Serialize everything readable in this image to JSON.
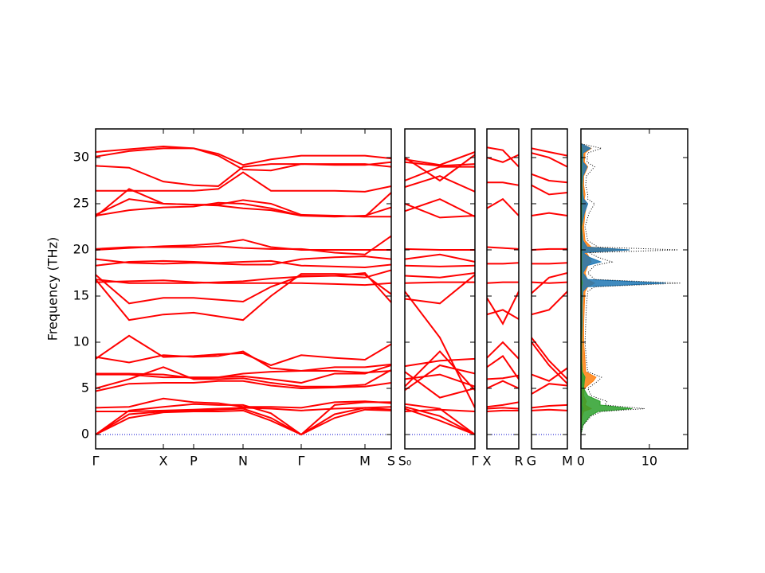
{
  "chart_data": [
    {
      "type": "line",
      "ylabel": "Frequency (THz)",
      "color": "#ff0000",
      "ytick_labels": true,
      "zero_line": "#0000cc",
      "xlim": [
        0,
        3.71
      ],
      "ylim": [
        -1.55,
        33.1
      ],
      "yticks": [
        0,
        5,
        10,
        15,
        20,
        25,
        30
      ],
      "xticks": [
        {
          "value": 0,
          "label": "Γ"
        },
        {
          "value": 0.85,
          "label": "X"
        },
        {
          "value": 1.23,
          "label": "P"
        },
        {
          "value": 1.85,
          "label": "N"
        },
        {
          "value": 2.58,
          "label": "Γ"
        },
        {
          "value": 3.38,
          "label": "M"
        },
        {
          "value": 3.71,
          "label": "S"
        }
      ],
      "x": [
        0,
        0.42,
        0.85,
        1.23,
        1.54,
        1.85,
        2.2,
        2.58,
        3.0,
        3.38,
        3.71
      ],
      "series": [
        {
          "values": [
            0,
            1.8,
            2.4,
            2.5,
            2.5,
            2.6,
            1.5,
            0,
            1.8,
            2.7,
            2.6
          ]
        },
        {
          "values": [
            0,
            2.2,
            2.5,
            2.6,
            2.7,
            2.8,
            1.8,
            0,
            2.2,
            2.9,
            2.7
          ]
        },
        {
          "values": [
            0,
            2.6,
            3.0,
            3.3,
            3.2,
            3.2,
            2.3,
            0,
            3.2,
            3.5,
            3.5
          ]
        },
        {
          "values": [
            2.5,
            2.5,
            2.6,
            2.7,
            2.8,
            2.9,
            2.8,
            2.6,
            2.8,
            2.9,
            3.0
          ]
        },
        {
          "values": [
            2.9,
            3.0,
            3.9,
            3.5,
            3.4,
            3.0,
            3.0,
            2.9,
            3.5,
            3.6,
            3.4
          ]
        },
        {
          "values": [
            4.7,
            5.5,
            5.6,
            5.6,
            5.8,
            5.8,
            5.3,
            5.0,
            5.1,
            5.2,
            5.6
          ]
        },
        {
          "values": [
            5.0,
            6.0,
            7.3,
            6.0,
            6.0,
            6.1,
            5.6,
            5.2,
            5.2,
            5.4,
            7.0
          ]
        },
        {
          "values": [
            6.5,
            6.5,
            6.2,
            6.2,
            6.2,
            6.3,
            6.0,
            5.6,
            6.6,
            6.6,
            7.5
          ]
        },
        {
          "values": [
            6.6,
            6.6,
            6.5,
            6.1,
            6.2,
            6.6,
            6.8,
            6.9,
            6.9,
            6.7,
            6.9
          ]
        },
        {
          "values": [
            8.2,
            10.7,
            8.4,
            8.5,
            8.7,
            8.8,
            7.5,
            8.6,
            8.3,
            8.1,
            9.8
          ]
        },
        {
          "values": [
            8.4,
            7.8,
            8.6,
            8.4,
            8.5,
            9.0,
            7.2,
            6.9,
            7.3,
            7.3,
            7.6
          ]
        },
        {
          "values": [
            16.8,
            12.4,
            13.0,
            13.2,
            12.8,
            12.4,
            15.0,
            17.4,
            17.4,
            17.3,
            15.2
          ]
        },
        {
          "values": [
            17.3,
            14.2,
            14.8,
            14.8,
            14.6,
            14.4,
            16.0,
            17.2,
            17.2,
            17.5,
            14.3
          ]
        },
        {
          "values": [
            16.5,
            16.6,
            16.7,
            16.5,
            16.4,
            16.4,
            16.4,
            16.4,
            16.3,
            16.2,
            16.4
          ]
        },
        {
          "values": [
            16.8,
            16.4,
            16.4,
            16.4,
            16.5,
            16.6,
            16.9,
            17.1,
            17.2,
            17.0,
            17.8
          ]
        },
        {
          "values": [
            18.3,
            18.7,
            18.8,
            18.7,
            18.6,
            18.7,
            18.8,
            18.3,
            18.2,
            18.1,
            18.4
          ]
        },
        {
          "values": [
            19.0,
            18.6,
            18.5,
            18.6,
            18.5,
            18.4,
            18.4,
            19.0,
            19.2,
            19.3,
            19.0
          ]
        },
        {
          "values": [
            20.0,
            20.2,
            20.4,
            20.5,
            20.7,
            21.1,
            20.3,
            20.0,
            20.0,
            20.0,
            20.0
          ]
        },
        {
          "values": [
            20.1,
            20.3,
            20.3,
            20.3,
            20.4,
            20.2,
            20.1,
            20.1,
            19.7,
            19.5,
            21.5
          ]
        },
        {
          "values": [
            23.7,
            24.3,
            24.6,
            24.7,
            25.1,
            25.0,
            24.5,
            23.7,
            23.7,
            23.6,
            26.2
          ]
        },
        {
          "values": [
            23.6,
            26.6,
            25.0,
            24.9,
            24.8,
            24.5,
            24.3,
            23.7,
            23.6,
            23.7,
            24.6
          ]
        },
        {
          "values": [
            23.8,
            25.5,
            25.0,
            24.9,
            24.9,
            25.4,
            25.0,
            23.8,
            23.7,
            23.6,
            23.6
          ]
        },
        {
          "values": [
            26.4,
            26.4,
            26.4,
            26.4,
            26.6,
            28.4,
            26.4,
            26.4,
            26.4,
            26.3,
            26.9
          ]
        },
        {
          "values": [
            29.1,
            28.9,
            27.4,
            27.0,
            26.9,
            29.0,
            29.3,
            29.3,
            29.3,
            29.3,
            29.0
          ]
        },
        {
          "values": [
            30.1,
            30.7,
            31.0,
            31.0,
            30.2,
            28.7,
            28.6,
            29.3,
            29.2,
            29.2,
            29.5
          ]
        },
        {
          "values": [
            30.6,
            30.9,
            31.2,
            31.0,
            30.4,
            29.2,
            29.8,
            30.2,
            30.2,
            30.2,
            29.9
          ]
        }
      ]
    },
    {
      "type": "line",
      "color": "#ff0000",
      "ytick_labels": false,
      "zero_line": "#0000cc",
      "xlim": [
        0,
        0.88
      ],
      "ylim": [
        -1.55,
        33.1
      ],
      "yticks": [
        0,
        5,
        10,
        15,
        20,
        25,
        30
      ],
      "xticks": [
        {
          "value": 0,
          "label": "S₀"
        },
        {
          "value": 0.88,
          "label": "Γ"
        }
      ],
      "x": [
        0,
        0.44,
        0.88
      ],
      "series": [
        {
          "values": [
            2.5,
            2.7,
            2.5
          ]
        },
        {
          "values": [
            2.8,
            1.5,
            0
          ]
        },
        {
          "values": [
            3.0,
            2.0,
            0
          ]
        },
        {
          "values": [
            3.3,
            2.8,
            0
          ]
        },
        {
          "values": [
            4.8,
            7.5,
            6.6
          ]
        },
        {
          "values": [
            5.2,
            9.0,
            4.8
          ]
        },
        {
          "values": [
            6.0,
            6.5,
            5.2
          ]
        },
        {
          "values": [
            6.8,
            4.0,
            5.0
          ]
        },
        {
          "values": [
            7.4,
            8.0,
            8.2
          ]
        },
        {
          "values": [
            15.5,
            10.5,
            2.9
          ]
        },
        {
          "values": [
            14.7,
            14.2,
            17.3
          ]
        },
        {
          "values": [
            16.4,
            16.5,
            16.5
          ]
        },
        {
          "values": [
            17.2,
            17.0,
            17.5
          ]
        },
        {
          "values": [
            18.3,
            18.2,
            18.3
          ]
        },
        {
          "values": [
            19.0,
            19.5,
            18.7
          ]
        },
        {
          "values": [
            20.1,
            20.0,
            20.0
          ]
        },
        {
          "values": [
            25.0,
            23.5,
            23.7
          ]
        },
        {
          "values": [
            24.2,
            25.5,
            23.6
          ]
        },
        {
          "values": [
            26.8,
            28.0,
            26.3
          ]
        },
        {
          "values": [
            27.5,
            29.0,
            29.0
          ]
        },
        {
          "values": [
            29.5,
            29.1,
            29.3
          ]
        },
        {
          "values": [
            30.0,
            27.5,
            30.3
          ]
        },
        {
          "values": [
            29.8,
            29.2,
            30.6
          ]
        }
      ]
    },
    {
      "type": "line",
      "color": "#ff0000",
      "ytick_labels": false,
      "zero_line": "#0000cc",
      "xlim": [
        0,
        0.4
      ],
      "ylim": [
        -1.55,
        33.1
      ],
      "yticks": [
        0,
        5,
        10,
        15,
        20,
        25,
        30
      ],
      "xticks": [
        {
          "value": 0,
          "label": "X"
        },
        {
          "value": 0.4,
          "label": "R"
        }
      ],
      "x": [
        0,
        0.2,
        0.4
      ],
      "series": [
        {
          "values": [
            2.5,
            2.6,
            2.6
          ]
        },
        {
          "values": [
            2.8,
            2.9,
            2.8
          ]
        },
        {
          "values": [
            3.0,
            3.2,
            3.5
          ]
        },
        {
          "values": [
            5.0,
            5.8,
            5.0
          ]
        },
        {
          "values": [
            6.0,
            6.1,
            6.4
          ]
        },
        {
          "values": [
            8.3,
            10.0,
            8.2
          ]
        },
        {
          "values": [
            7.3,
            8.5,
            6.0
          ]
        },
        {
          "values": [
            13.0,
            13.5,
            12.5
          ]
        },
        {
          "values": [
            14.8,
            12.0,
            15.5
          ]
        },
        {
          "values": [
            16.4,
            16.5,
            16.5
          ]
        },
        {
          "values": [
            18.5,
            18.5,
            18.6
          ]
        },
        {
          "values": [
            20.3,
            20.2,
            20.1
          ]
        },
        {
          "values": [
            24.5,
            25.5,
            23.7
          ]
        },
        {
          "values": [
            27.3,
            27.3,
            27.0
          ]
        },
        {
          "values": [
            30.0,
            29.5,
            30.3
          ]
        },
        {
          "values": [
            31.1,
            30.8,
            29.0
          ]
        }
      ]
    },
    {
      "type": "line",
      "color": "#ff0000",
      "ytick_labels": false,
      "zero_line": "#0000cc",
      "xlim": [
        0,
        0.45
      ],
      "ylim": [
        -1.55,
        33.1
      ],
      "yticks": [
        0,
        5,
        10,
        15,
        20,
        25,
        30
      ],
      "xticks": [
        {
          "value": 0,
          "label": "G"
        },
        {
          "value": 0.45,
          "label": "M"
        }
      ],
      "x": [
        0,
        0.22,
        0.45
      ],
      "series": [
        {
          "values": [
            2.6,
            2.7,
            2.6
          ]
        },
        {
          "values": [
            2.9,
            3.1,
            3.2
          ]
        },
        {
          "values": [
            4.4,
            5.5,
            5.3
          ]
        },
        {
          "values": [
            6.5,
            5.8,
            7.2
          ]
        },
        {
          "values": [
            10.5,
            8.0,
            6.0
          ]
        },
        {
          "values": [
            10.0,
            7.5,
            5.5
          ]
        },
        {
          "values": [
            13.0,
            13.5,
            15.5
          ]
        },
        {
          "values": [
            15.3,
            17.0,
            17.5
          ]
        },
        {
          "values": [
            16.5,
            16.4,
            16.5
          ]
        },
        {
          "values": [
            18.5,
            18.5,
            18.6
          ]
        },
        {
          "values": [
            20.0,
            20.1,
            20.1
          ]
        },
        {
          "values": [
            23.7,
            24.0,
            23.7
          ]
        },
        {
          "values": [
            27.0,
            26.0,
            26.2
          ]
        },
        {
          "values": [
            28.2,
            27.5,
            27.3
          ]
        },
        {
          "values": [
            30.5,
            30.0,
            29.0
          ]
        },
        {
          "values": [
            31.0,
            30.6,
            30.2
          ]
        }
      ]
    },
    {
      "type": "area",
      "ytick_labels": false,
      "xlim": [
        0,
        15.6
      ],
      "ylim": [
        -1.55,
        33.1
      ],
      "yticks": [
        0,
        5,
        10,
        15,
        20,
        25,
        30
      ],
      "xticks": [
        0,
        10
      ],
      "y": [
        0,
        1,
        2,
        2.5,
        2.8,
        3.2,
        3.6,
        4.2,
        5,
        5.8,
        6.2,
        6.8,
        8,
        10,
        12,
        14,
        15.5,
        16.0,
        16.4,
        16.8,
        17.5,
        18.3,
        18.7,
        19.2,
        19.7,
        20.0,
        20.3,
        21,
        22.5,
        24,
        25,
        25.5,
        26,
        27,
        28,
        29,
        29.5,
        30.5,
        31,
        31.5
      ],
      "series": [
        {
          "color": "#ff7f0e",
          "style": "fill",
          "values": [
            0,
            0,
            0.2,
            0.4,
            1.5,
            0.6,
            0.8,
            0.4,
            0.5,
            1.8,
            2.2,
            0.7,
            0.6,
            0.4,
            0.4,
            0.5,
            0.6,
            1.0,
            2.0,
            0.9,
            0.6,
            1.0,
            1.5,
            1.2,
            0.8,
            7.0,
            1.5,
            0.6,
            0.4,
            0.6,
            0.9,
            0.5,
            0.6,
            0.4,
            0.4,
            1.0,
            0.5,
            0.6,
            1.5,
            0
          ]
        },
        {
          "color": "#1f77b4",
          "style": "fill",
          "values": [
            0,
            0,
            0,
            0.1,
            0.3,
            0.1,
            0.2,
            0.1,
            0.1,
            0.2,
            0.2,
            0.1,
            0.1,
            0.1,
            0.2,
            0.2,
            0.3,
            0.9,
            12.4,
            1.0,
            0.3,
            0.9,
            2.9,
            1.2,
            0.3,
            7.1,
            0.9,
            0.3,
            0.1,
            0.5,
            1.0,
            0.4,
            0.3,
            0.2,
            0.3,
            0.9,
            0.3,
            0.3,
            1.4,
            0
          ]
        },
        {
          "color": "#2ca02c",
          "style": "fill",
          "values": [
            0,
            0.3,
            1.3,
            2.5,
            7.5,
            2.8,
            2.8,
            1.0,
            0.4,
            0.5,
            0.6,
            0.2,
            0.1,
            0.1,
            0.1,
            0.1,
            0.1,
            0.1,
            0.2,
            0.1,
            0.1,
            0.1,
            0.1,
            0.1,
            0.1,
            0.1,
            0.1,
            0.1,
            0.1,
            0.1,
            0.1,
            0.1,
            0.1,
            0.1,
            0.1,
            0.1,
            0.1,
            0.1,
            0.1,
            0
          ]
        },
        {
          "color": "#000000",
          "style": "dotted",
          "values": [
            0,
            0.3,
            1.5,
            3,
            9.3,
            3.5,
            3.8,
            1.5,
            1.0,
            2.5,
            3.0,
            1.0,
            0.8,
            0.6,
            0.7,
            0.8,
            1.0,
            2.0,
            14.6,
            2.0,
            1.0,
            2.0,
            4.5,
            2.5,
            1.2,
            14.2,
            2.5,
            1.0,
            0.6,
            1.2,
            2.0,
            1.0,
            1.0,
            0.7,
            0.8,
            2.0,
            0.9,
            1.0,
            3.0,
            0
          ]
        }
      ]
    }
  ]
}
